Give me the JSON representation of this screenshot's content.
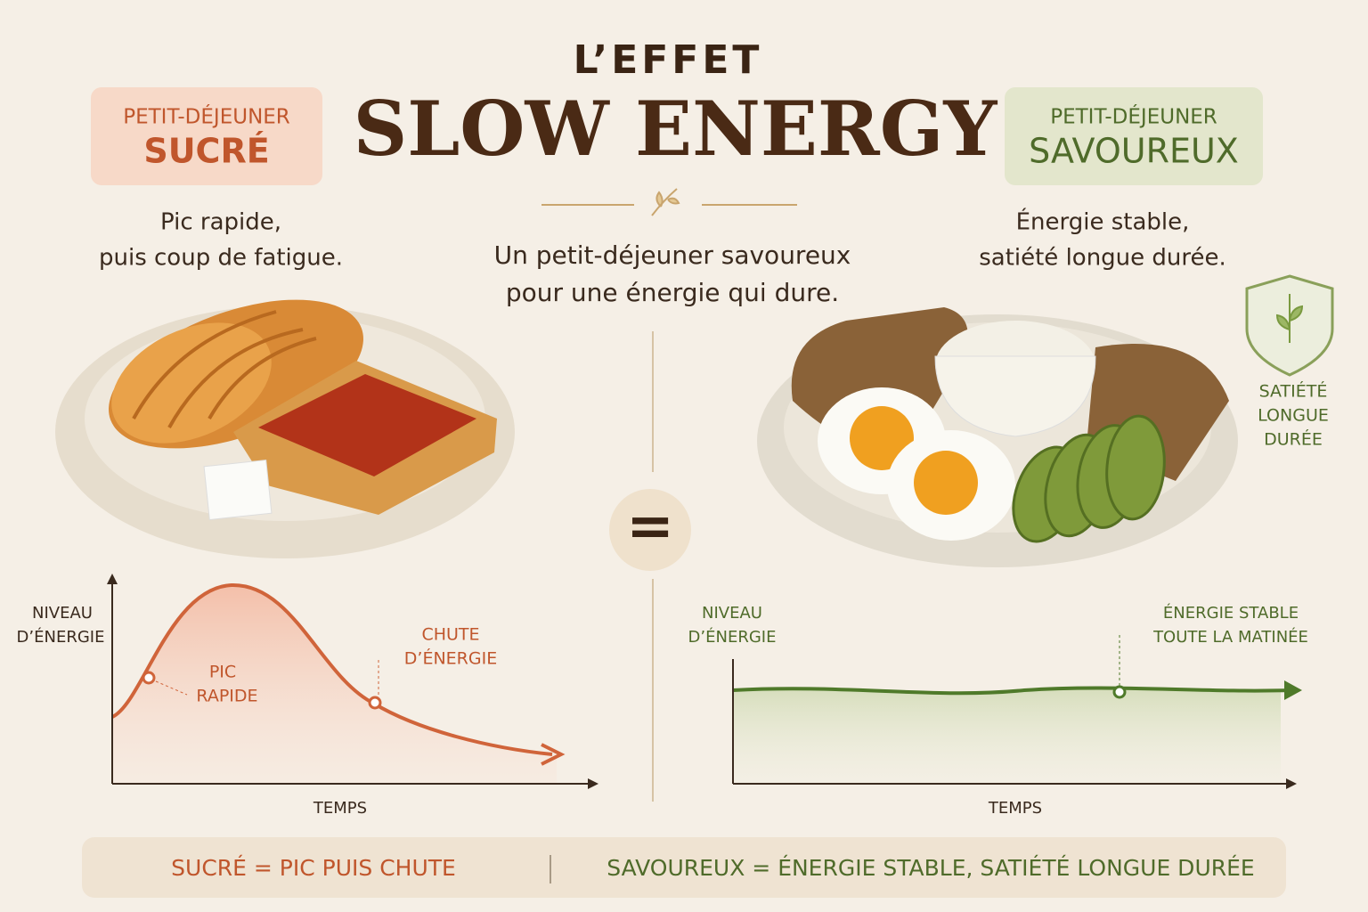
{
  "header": {
    "kicker": "L’EFFET",
    "title": "SLOW ENERGY",
    "subtitle": [
      "Un petit-déjeuner savoureux",
      "pour une énergie qui dure."
    ]
  },
  "left": {
    "badge_top": "PETIT-DÉJEUNER",
    "badge_main": "SUCRÉ",
    "description": [
      "Pic rapide,",
      "puis coup de fatigue."
    ],
    "chart": {
      "y_label": [
        "NIVEAU",
        "D’ÉNERGIE"
      ],
      "x_label": "TEMPS",
      "peak_label": [
        "PIC",
        "RAPIDE"
      ],
      "drop_label": [
        "CHUTE",
        "D’ÉNERGIE"
      ]
    }
  },
  "center": {
    "symbol": "="
  },
  "right": {
    "badge_top": "PETIT-DÉJEUNER",
    "badge_main": "SAVOUREUX",
    "description": [
      "Énergie stable,",
      "satiété longue durée."
    ],
    "shield_label": [
      "SATIÉTÉ",
      "LONGUE",
      "DURÉE"
    ],
    "chart": {
      "y_label": [
        "NIVEAU",
        "D’ÉNERGIE"
      ],
      "x_label": "TEMPS",
      "stable_label": [
        "ÉNERGIE STABLE",
        "TOUTE LA MATINÉE"
      ]
    }
  },
  "footer": {
    "left": "SUCRÉ = PIC PUIS CHUTE",
    "right": "SAVOUREUX = ÉNERGIE STABLE, SATIÉTÉ LONGUE DURÉE"
  }
}
